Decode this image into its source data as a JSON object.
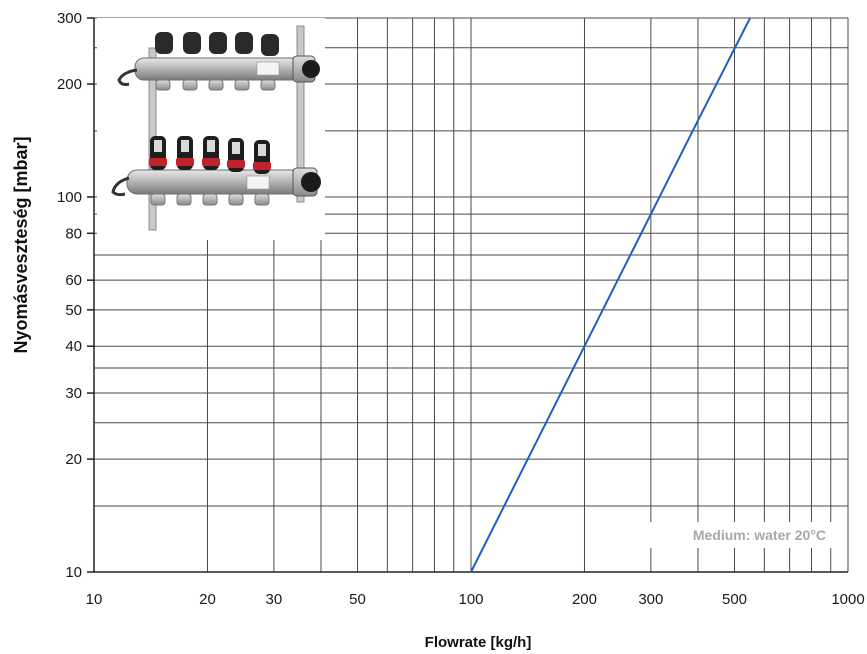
{
  "chart_data": {
    "type": "line",
    "xlabel": "Flowrate  [kg/h]",
    "ylabel": "Nyomásveszteség [mbar]",
    "x_scale": "log",
    "y_scale": "log",
    "xlim": [
      10,
      1000
    ],
    "ylim": [
      10,
      300
    ],
    "grid": true,
    "x_ticks": [
      10,
      20,
      30,
      50,
      100,
      200,
      300,
      500,
      1000
    ],
    "x_tick_labels": [
      "10",
      "20",
      "30",
      "50",
      "100",
      "200",
      "300",
      "500",
      "1000"
    ],
    "y_ticks": [
      10,
      20,
      30,
      40,
      50,
      60,
      80,
      100,
      200,
      300
    ],
    "y_tick_labels": [
      "10",
      "20",
      "30",
      "40",
      "50",
      "60",
      "80",
      "100",
      "200",
      "300"
    ],
    "annotation": "Medium: water 20°C",
    "series": [
      {
        "x": [
          100,
          150,
          200,
          300,
          400,
          550
        ],
        "y": [
          10,
          22.5,
          40,
          90,
          160,
          302
        ]
      }
    ],
    "line_color": "#1f5fbf"
  },
  "image": {
    "icon": "manifold-photo-icon"
  }
}
